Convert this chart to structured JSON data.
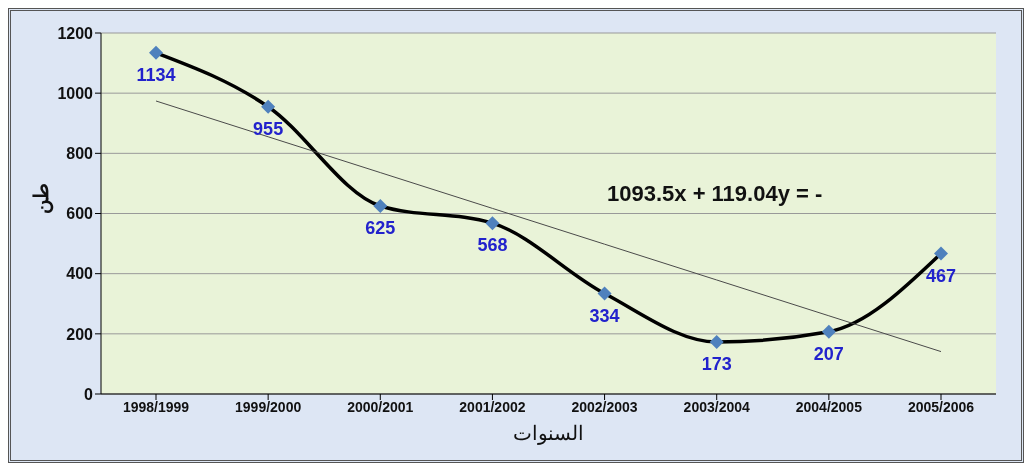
{
  "chart_data": {
    "type": "line",
    "xlabel": "السنوات",
    "ylabel": "طن",
    "categories": [
      "1998/1999",
      "1999/2000",
      "2000/2001",
      "2001/2002",
      "2002/2003",
      "2003/2004",
      "2004/2005",
      "2005/2006"
    ],
    "series": [
      {
        "color": "#000000",
        "values": [
          1134,
          955,
          625,
          568,
          334,
          173,
          207,
          467
        ],
        "marker": "diamond",
        "data_labels": true,
        "line_style": "solid"
      },
      {
        "color": "#4a4a4a",
        "values": [
          974,
          855,
          736,
          617,
          498,
          379,
          260,
          141
        ],
        "marker": "none",
        "line_style": "solid"
      }
    ],
    "ylim": [
      0,
      1200
    ],
    "yticks": [
      0,
      200,
      400,
      600,
      800,
      1000,
      1200
    ],
    "grid": "y",
    "legend": false,
    "annotations": [
      {
        "text": "1093.5x + 119.04y = -"
      }
    ]
  }
}
